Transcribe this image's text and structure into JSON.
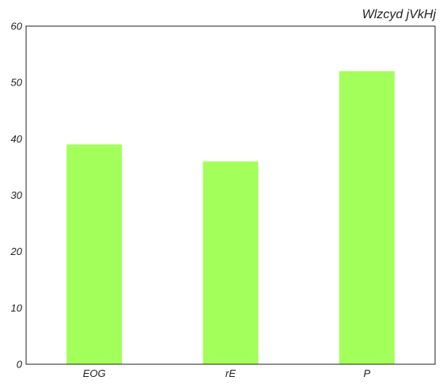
{
  "chart_data": {
    "type": "bar",
    "title": "Wlzcyd jVkHj",
    "categories": [
      "EOG",
      "rE",
      "P"
    ],
    "values": [
      39,
      36,
      52
    ],
    "xlabel": "",
    "ylabel": "",
    "ylim": [
      0,
      60
    ],
    "yticks": [
      0,
      10,
      20,
      30,
      40,
      50,
      60
    ],
    "grid": false,
    "legend": "none",
    "bar_color": "#a3ff5a",
    "axis_color": "#222222"
  }
}
